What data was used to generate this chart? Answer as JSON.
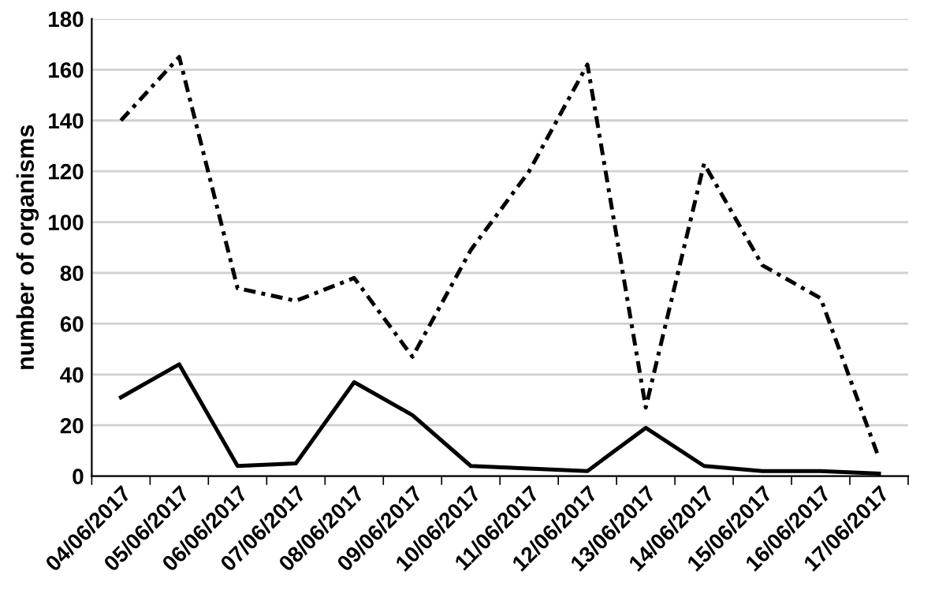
{
  "chart_data": {
    "type": "line",
    "ylabel": "number of organisms",
    "categories": [
      "04/06/2017",
      "05/06/2017",
      "06/06/2017",
      "07/06/2017",
      "08/06/2017",
      "09/06/2017",
      "10/06/2017",
      "11/06/2017",
      "12/06/2017",
      "13/06/2017",
      "14/06/2017",
      "15/06/2017",
      "16/06/2017",
      "17/06/2017"
    ],
    "series": [
      {
        "color": "#000000",
        "line_style": "dashdot",
        "values": [
          140,
          165,
          74,
          69,
          78,
          47,
          89,
          120,
          162,
          27,
          123,
          83,
          70,
          7
        ]
      },
      {
        "color": "#000000",
        "line_style": "solid",
        "values": [
          31,
          44,
          4,
          5,
          37,
          24,
          4,
          3,
          2,
          19,
          4,
          2,
          2,
          1
        ]
      }
    ],
    "ylim": [
      0,
      180
    ],
    "yticks": [
      0,
      20,
      40,
      60,
      80,
      100,
      120,
      140,
      160,
      180
    ],
    "grid": "y",
    "marker": "none"
  }
}
